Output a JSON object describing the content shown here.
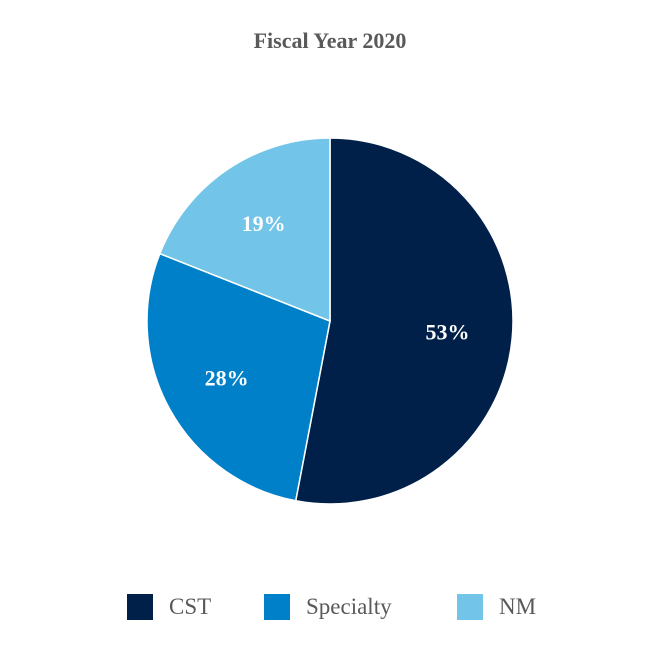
{
  "chart_data": {
    "type": "pie",
    "title": "Fiscal Year 2020",
    "categories": [
      "CST",
      "Specialty",
      "NM"
    ],
    "values": [
      53,
      28,
      19
    ],
    "labels": [
      "53%",
      "28%",
      "19%"
    ],
    "unit": "%",
    "colors": [
      "#00204a",
      "#0080c8",
      "#72c4e8"
    ],
    "legend_position": "bottom",
    "label_color": "#ffffff"
  }
}
